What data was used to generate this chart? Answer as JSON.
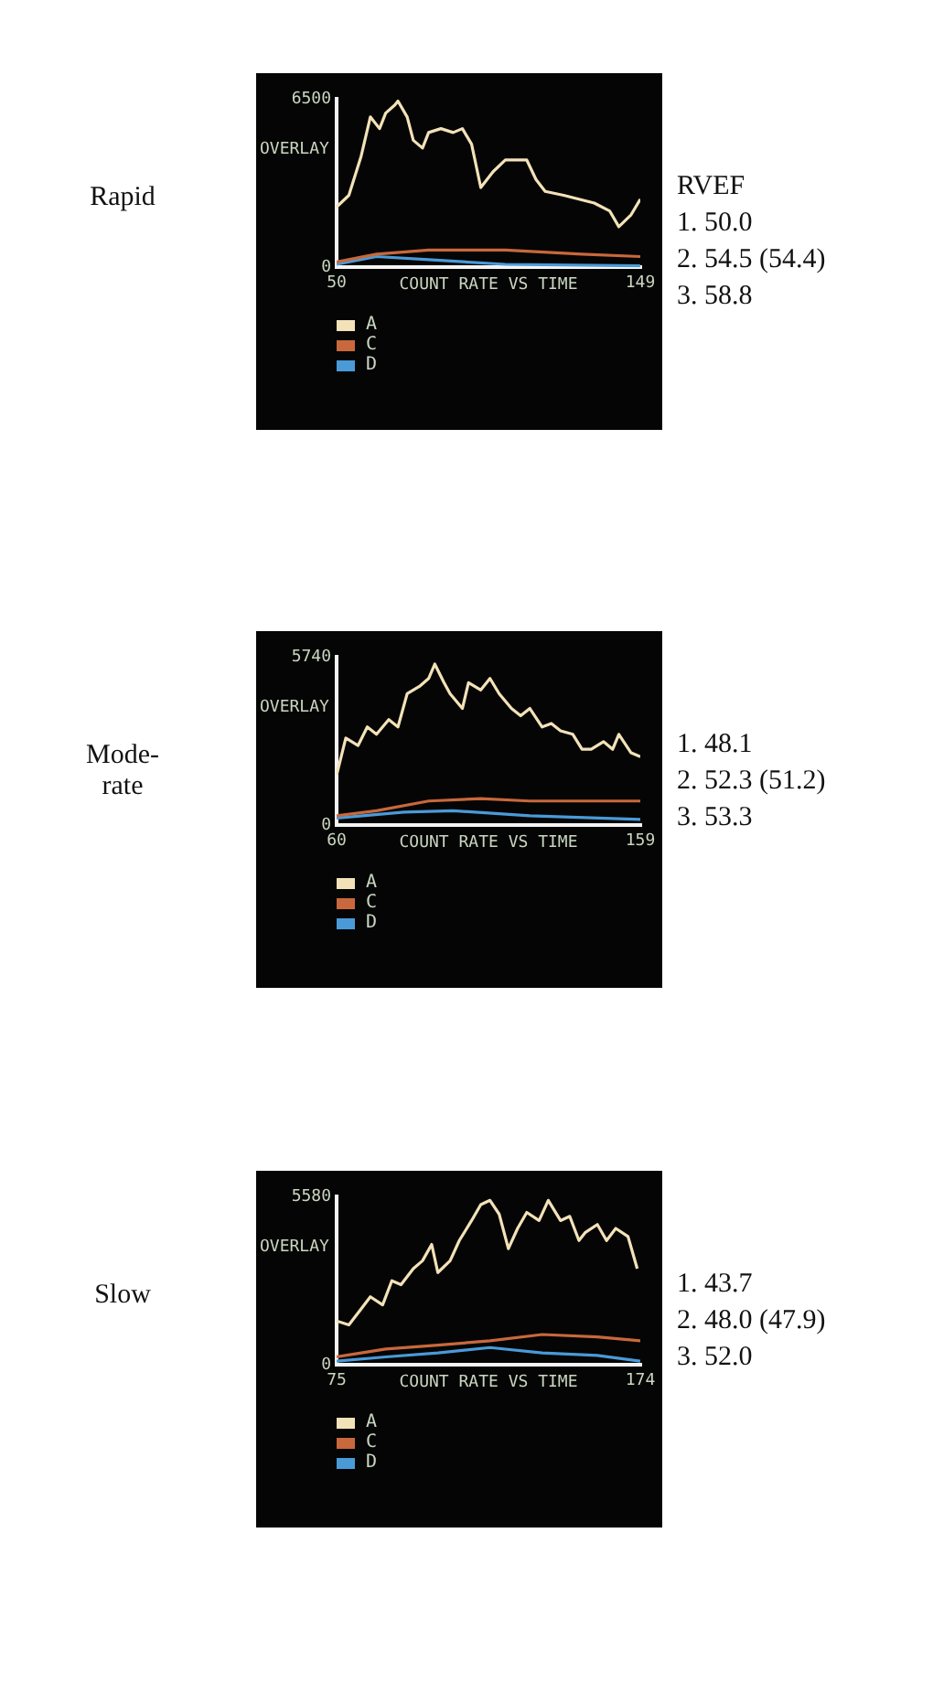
{
  "chart_data": [
    {
      "type": "line",
      "title": "Rapid",
      "ylabel": "OVERLAY",
      "xlabel": "COUNT RATE VS TIME",
      "xlim": [
        50,
        149
      ],
      "xticks": [
        50,
        149
      ],
      "ylim": [
        0,
        6500
      ],
      "yticks": [
        0,
        6500
      ],
      "grid": false,
      "legend": "bottom left",
      "marker": "none",
      "line_style": "solid",
      "annotations": [
        "RVEF",
        "1. 50.0",
        "2. 54.5 (54.4)",
        "3. 58.8"
      ],
      "series": [
        {
          "name": "A",
          "color": "#f3e2b8",
          "x": [
            50,
            54,
            58,
            61,
            64,
            66,
            69,
            70,
            73,
            75,
            78,
            80,
            84,
            88,
            91,
            94,
            97,
            101,
            105,
            112,
            115,
            118,
            124,
            129,
            134,
            139,
            142,
            146,
            149
          ],
          "values": [
            2330,
            2780,
            4290,
            5800,
            5350,
            5950,
            6260,
            6410,
            5800,
            4900,
            4600,
            5200,
            5350,
            5200,
            5350,
            4750,
            3080,
            3690,
            4140,
            4140,
            3390,
            2930,
            2780,
            2630,
            2480,
            2180,
            1570,
            2030,
            2630
          ]
        },
        {
          "name": "C",
          "color": "#c8683c",
          "x": [
            50,
            63,
            80,
            105,
            130,
            149
          ],
          "values": [
            210,
            510,
            670,
            670,
            510,
            420
          ]
        },
        {
          "name": "D",
          "color": "#4a9ad8",
          "x": [
            50,
            63,
            80,
            105,
            149
          ],
          "values": [
            120,
            420,
            300,
            120,
            60
          ]
        }
      ]
    },
    {
      "type": "line",
      "title": "Mode-\nrate",
      "ylabel": "OVERLAY",
      "xlabel": "COUNT RATE VS TIME",
      "xlim": [
        60,
        159
      ],
      "xticks": [
        60,
        159
      ],
      "ylim": [
        0,
        5740
      ],
      "yticks": [
        0,
        5740
      ],
      "grid": false,
      "legend": "bottom left",
      "marker": "none",
      "line_style": "solid",
      "annotations": [
        "1. 48.1",
        "2. 52.3 (51.2)",
        "3. 53.3"
      ],
      "series": [
        {
          "name": "A",
          "color": "#f3e2b8",
          "x": [
            60,
            63,
            67,
            70,
            73,
            77,
            80,
            83,
            87,
            90,
            92,
            95,
            97,
            101,
            103,
            107,
            110,
            113,
            117,
            120,
            123,
            127,
            130,
            133,
            137,
            140,
            143,
            147,
            150,
            152,
            156,
            159
          ],
          "values": [
            1710,
            2970,
            2720,
            3350,
            3100,
            3600,
            3350,
            4480,
            4730,
            5000,
            5490,
            4860,
            4480,
            3980,
            4860,
            4610,
            5000,
            4480,
            3980,
            3730,
            3980,
            3350,
            3470,
            3220,
            3100,
            2590,
            2590,
            2850,
            2590,
            3100,
            2470,
            2340
          ]
        },
        {
          "name": "C",
          "color": "#c8683c",
          "x": [
            60,
            73,
            90,
            107,
            123,
            140,
            159
          ],
          "values": [
            330,
            500,
            830,
            910,
            830,
            830,
            830
          ]
        },
        {
          "name": "D",
          "color": "#4a9ad8",
          "x": [
            60,
            82,
            98,
            123,
            159
          ],
          "values": [
            250,
            450,
            500,
            330,
            200
          ]
        }
      ]
    },
    {
      "type": "line",
      "title": "Slow",
      "ylabel": "OVERLAY",
      "xlabel": "COUNT RATE VS TIME",
      "xlim": [
        75,
        174
      ],
      "xticks": [
        75,
        174
      ],
      "ylim": [
        0,
        5580
      ],
      "yticks": [
        0,
        5580
      ],
      "grid": false,
      "legend": "bottom left",
      "marker": "none",
      "line_style": "solid",
      "annotations": [
        "1. 43.7",
        "2. 48.0 (47.9)",
        "3. 52.0"
      ],
      "series": [
        {
          "name": "A",
          "color": "#f3e2b8",
          "x": [
            75,
            79,
            83,
            86,
            90,
            93,
            96,
            100,
            103,
            106,
            108,
            112,
            115,
            119,
            122,
            125,
            128,
            131,
            134,
            137,
            141,
            144,
            148,
            151,
            154,
            156,
            160,
            163,
            166,
            170,
            173
          ],
          "values": [
            1460,
            1330,
            1860,
            2260,
            1990,
            2790,
            2660,
            3190,
            3450,
            3990,
            3060,
            3450,
            4120,
            4780,
            5310,
            5450,
            4990,
            3850,
            4520,
            5050,
            4780,
            5450,
            4780,
            4920,
            4120,
            4380,
            4650,
            4120,
            4520,
            4250,
            3190
          ]
        },
        {
          "name": "C",
          "color": "#c8683c",
          "x": [
            75,
            91,
            108,
            125,
            142,
            160,
            174
          ],
          "values": [
            270,
            530,
            660,
            800,
            1010,
            930,
            800
          ]
        },
        {
          "name": "D",
          "color": "#4a9ad8",
          "x": [
            75,
            91,
            108,
            125,
            142,
            160,
            174
          ],
          "values": [
            130,
            270,
            400,
            580,
            400,
            320,
            130
          ]
        }
      ]
    }
  ]
}
